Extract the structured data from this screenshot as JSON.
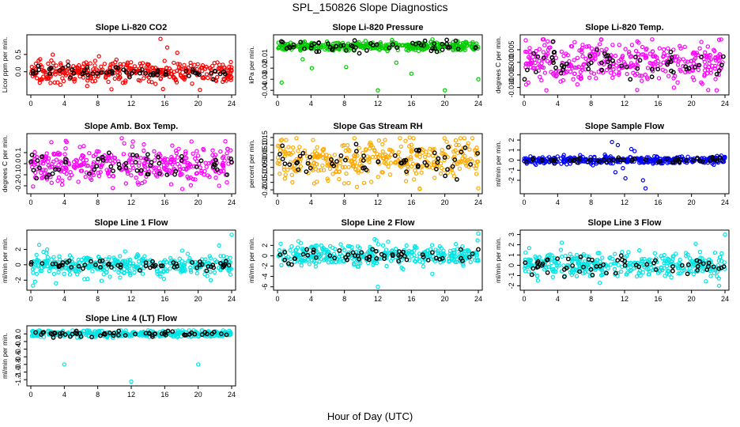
{
  "figure_title": "SPL_150826  Slope Diagnostics",
  "xlabel": "Hour of Day (UTC)",
  "colors": {
    "overlay": "#000000",
    "frame": "#000000"
  },
  "chart_data": [
    {
      "type": "scatter",
      "title": "Slope Li-820 CO2",
      "ylabel": "Licor ppm per min.",
      "xlim": [
        0,
        24
      ],
      "xticks": [
        0,
        4,
        8,
        12,
        16,
        20,
        24
      ],
      "ylim": [
        -0.6,
        1.0
      ],
      "yticks": [
        0.0,
        0.5
      ],
      "ytick_labels": [
        "0.0",
        "0.5"
      ],
      "color": "#ff0000",
      "center": 0.0,
      "spread": 0.15,
      "black_spread": 0.08,
      "outliers": [
        [
          15.5,
          0.95
        ],
        [
          15.8,
          -0.5
        ],
        [
          16.3,
          0.7
        ],
        [
          17.5,
          0.55
        ],
        [
          14.9,
          -0.35
        ]
      ]
    },
    {
      "type": "scatter",
      "title": "Slope Li-820 Pressure",
      "ylabel": "kPa per min.",
      "xlim": [
        0,
        24
      ],
      "xticks": [
        0,
        4,
        8,
        12,
        16,
        20,
        24
      ],
      "ylim": [
        -0.042,
        0.008
      ],
      "yticks": [
        -0.04,
        -0.03,
        -0.02,
        -0.01
      ],
      "ytick_labels": [
        "-0.04",
        "-0.03",
        "-0.02",
        "-0.01"
      ],
      "color": "#00cc00",
      "center": 0.0,
      "spread": 0.002,
      "black_spread": 0.003,
      "outliers": [
        [
          0.5,
          -0.033
        ],
        [
          12,
          -0.04
        ],
        [
          16,
          -0.025
        ],
        [
          20,
          -0.04
        ],
        [
          24,
          -0.03
        ],
        [
          4.1,
          -0.02
        ],
        [
          8.2,
          -0.019
        ],
        [
          14.2,
          -0.015
        ],
        [
          3.0,
          -0.012
        ]
      ]
    },
    {
      "type": "scatter",
      "title": "Slope Li-820 Temp.",
      "ylabel": "degrees C per min.",
      "xlim": [
        0,
        24
      ],
      "xticks": [
        0,
        4,
        8,
        12,
        16,
        20,
        24
      ],
      "ylim": [
        -0.012,
        0.01
      ],
      "yticks": [
        -0.01,
        -0.005,
        0.0,
        0.005
      ],
      "ytick_labels": [
        "-0.010",
        "-0.005",
        "0.000",
        "0.005"
      ],
      "color": "#ff00ff",
      "center": 0.0,
      "spread": 0.004,
      "black_spread": 0.003,
      "outliers": [
        [
          9.2,
          0.009
        ],
        [
          13.5,
          -0.011
        ],
        [
          22,
          -0.011
        ],
        [
          23.3,
          0.009
        ]
      ]
    },
    {
      "type": "scatter",
      "title": "Slope Amb. Box Temp.",
      "ylabel": "degrees C per min.",
      "xlim": [
        0,
        24
      ],
      "xticks": [
        0,
        4,
        8,
        12,
        16,
        20,
        24
      ],
      "ylim": [
        -0.25,
        0.25
      ],
      "yticks": [
        -0.2,
        -0.1,
        0.0,
        0.1
      ],
      "ytick_labels": [
        "-0.2",
        "-0.1",
        "0.0",
        "0.1"
      ],
      "color": "#ff00ff",
      "center": 0.0,
      "spread": 0.08,
      "black_spread": 0.06,
      "outliers": [
        [
          9.8,
          -0.22
        ],
        [
          12.2,
          0.2
        ],
        [
          19.2,
          0.2
        ],
        [
          22.5,
          -0.2
        ]
      ]
    },
    {
      "type": "scatter",
      "title": "Slope Gas Stream RH",
      "ylabel": "percent per min.",
      "xlim": [
        0,
        24
      ],
      "xticks": [
        0,
        4,
        8,
        12,
        16,
        20,
        24
      ],
      "ylim": [
        -0.21,
        0.16
      ],
      "yticks": [
        -0.2,
        -0.15,
        -0.1,
        -0.05,
        0.0,
        0.05,
        0.1,
        0.15
      ],
      "ytick_labels": [
        "-0.20",
        "-0.15",
        "-0.10",
        "-0.05",
        "0.00",
        "0.05",
        "0.10",
        "0.15"
      ],
      "color": "#ffaa00",
      "center": 0.0,
      "spread": 0.07,
      "black_spread": 0.05,
      "outliers": [
        [
          0.4,
          0.13
        ],
        [
          15.8,
          0.15
        ],
        [
          24,
          -0.19
        ],
        [
          9.5,
          -0.18
        ]
      ]
    },
    {
      "type": "scatter",
      "title": "Slope Sample Flow",
      "ylabel": "ml/min per min.",
      "xlim": [
        0,
        24
      ],
      "xticks": [
        0,
        4,
        8,
        12,
        16,
        20,
        24
      ],
      "ylim": [
        -3.1,
        2.4
      ],
      "yticks": [
        -2,
        -1,
        0,
        1,
        2
      ],
      "ytick_labels": [
        "-2",
        "-1",
        "0",
        "1",
        "2"
      ],
      "color": "#0000ff",
      "center": 0.0,
      "spread": 0.2,
      "black_spread": 0.15,
      "outliers": [
        [
          10.5,
          1.8
        ],
        [
          11.2,
          1.5
        ],
        [
          12.1,
          -1.8
        ],
        [
          13.2,
          0.9
        ],
        [
          14.2,
          -2.0
        ],
        [
          14.5,
          -2.8
        ],
        [
          10.9,
          -1.2
        ],
        [
          12.8,
          1.1
        ],
        [
          11.8,
          -0.8
        ]
      ]
    },
    {
      "type": "scatter",
      "title": "Slope Line 1 Flow",
      "ylabel": "ml/min per min.",
      "xlim": [
        0,
        24
      ],
      "xticks": [
        0,
        4,
        8,
        12,
        16,
        20,
        24
      ],
      "ylim": [
        -3.0,
        4.2
      ],
      "yticks": [
        -2,
        0,
        2
      ],
      "ytick_labels": [
        "-2",
        "0",
        "2"
      ],
      "color": "#00e5e5",
      "center": 0.0,
      "spread": 0.7,
      "black_spread": 0.35,
      "outliers": [
        [
          24,
          3.9
        ],
        [
          1,
          2.6
        ],
        [
          0.5,
          -2.2
        ],
        [
          3.0,
          -2.4
        ],
        [
          21.5,
          -2.0
        ],
        [
          22.5,
          2.5
        ]
      ]
    },
    {
      "type": "scatter",
      "title": "Slope Line 2 Flow",
      "ylabel": "ml/min per min.",
      "xlim": [
        0,
        24
      ],
      "xticks": [
        0,
        4,
        8,
        12,
        16,
        20,
        24
      ],
      "ylim": [
        -6.2,
        4.5
      ],
      "yticks": [
        -6,
        -4,
        -2,
        0,
        2
      ],
      "ytick_labels": [
        "-6",
        "-4",
        "-2",
        "0",
        "2"
      ],
      "color": "#00e5e5",
      "center": 0.0,
      "spread": 1.0,
      "black_spread": 0.7,
      "outliers": [
        [
          12,
          -6.0
        ],
        [
          24,
          4.3
        ],
        [
          2.5,
          2.8
        ],
        [
          18.5,
          -3.5
        ]
      ]
    },
    {
      "type": "scatter",
      "title": "Slope Line 3 Flow",
      "ylabel": "ml/min per min.",
      "xlim": [
        0,
        24
      ],
      "xticks": [
        0,
        4,
        8,
        12,
        16,
        20,
        24
      ],
      "ylim": [
        -2.2,
        3.2
      ],
      "yticks": [
        -2,
        -1,
        0,
        1,
        2,
        3
      ],
      "ytick_labels": [
        "-2",
        "-1",
        "0",
        "1",
        "2",
        "3"
      ],
      "color": "#00e5e5",
      "center": 0.0,
      "spread": 0.6,
      "black_spread": 0.5,
      "outliers": [
        [
          24,
          3.0
        ],
        [
          23.3,
          -2.0
        ],
        [
          20.5,
          2.1
        ],
        [
          4.5,
          2.2
        ]
      ]
    },
    {
      "type": "scatter",
      "title": "Slope Line 4 (LT) Flow",
      "ylabel": "ml/min per min.",
      "xlim": [
        0,
        24
      ],
      "xticks": [
        0,
        4,
        8,
        12,
        16,
        20,
        24
      ],
      "ylim": [
        -1.3,
        0.15
      ],
      "yticks": [
        -1.2,
        -1.0,
        -0.8,
        -0.6,
        -0.4,
        -0.2,
        0.0
      ],
      "ytick_labels": [
        "-1.2",
        "-1.0",
        "-0.8",
        "-0.6",
        "-0.4",
        "-0.2",
        "0.0"
      ],
      "color": "#00e5e5",
      "center": 0.0,
      "spread": 0.04,
      "black_spread": 0.04,
      "outliers": [
        [
          4,
          -0.8
        ],
        [
          20,
          -0.8
        ],
        [
          12,
          -1.25
        ]
      ]
    }
  ]
}
